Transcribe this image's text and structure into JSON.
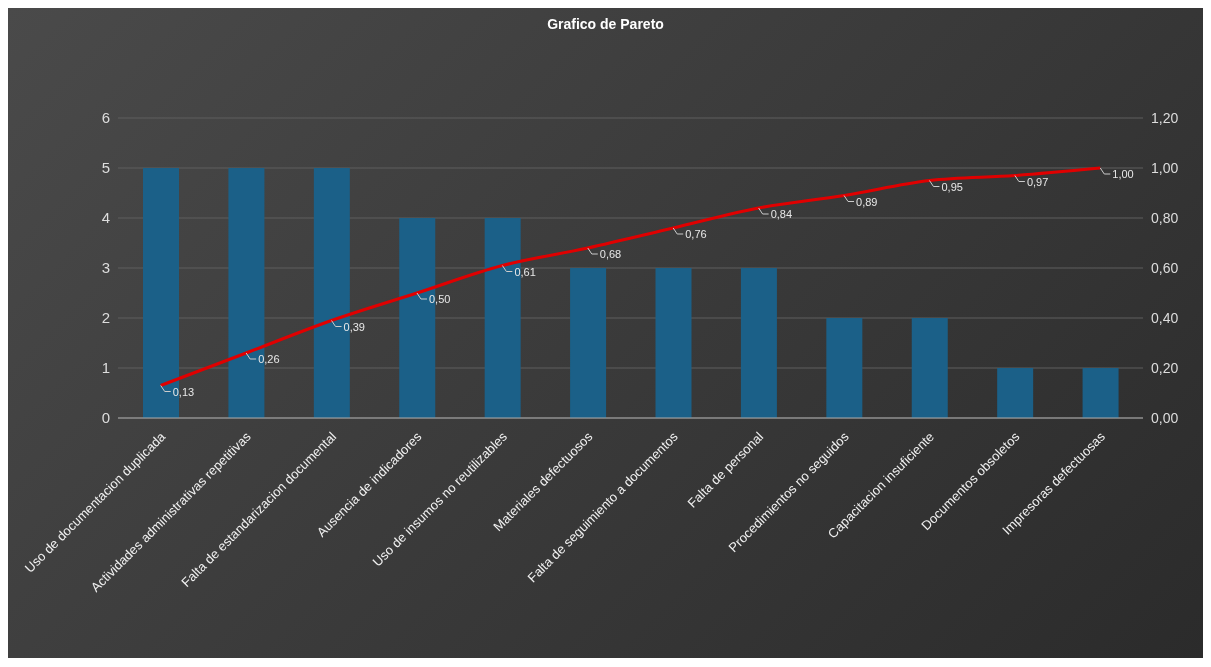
{
  "chart_data": {
    "type": "bar",
    "title": "Grafico de Pareto",
    "categories": [
      "Uso de documentacion duplicada",
      "Actividades administrativas repetitivas",
      "Falta de estandarizacion documental",
      "Ausencia de indicadores",
      "Uso de insumos no reutilizables",
      "Materiales defectuosos",
      "Falta de seguimiento a documentos",
      "Falta de personal",
      "Procedimientos no seguidos",
      "Capacitacion insuficiente",
      "Documentos obsoletos",
      "Impresoras defectuosas"
    ],
    "series": [
      {
        "color": "#1b6088",
        "values": [
          5,
          5,
          5,
          4,
          4,
          3,
          3,
          3,
          2,
          2,
          1,
          1
        ]
      },
      {
        "type": "line",
        "axis": "y2",
        "color": "#e00000",
        "values": [
          0.13,
          0.26,
          0.39,
          0.5,
          0.61,
          0.68,
          0.76,
          0.84,
          0.89,
          0.95,
          0.97,
          1.0
        ],
        "value_labels": [
          "0,13",
          "0,26",
          "0,39",
          "0,50",
          "0,61",
          "0,68",
          "0,76",
          "0,84",
          "0,89",
          "0,95",
          "0,97",
          "1,00"
        ]
      }
    ],
    "ylim": [
      0,
      6
    ],
    "yticks": [
      0,
      1,
      2,
      3,
      4,
      5,
      6
    ],
    "y2lim": [
      0,
      1.2
    ],
    "y2ticks": [
      {
        "value": 0,
        "label": "0,00"
      },
      {
        "value": 0.2,
        "label": "0,20"
      },
      {
        "value": 0.4,
        "label": "0,40"
      },
      {
        "value": 0.6,
        "label": "0,60"
      },
      {
        "value": 0.8,
        "label": "0,80"
      },
      {
        "value": 1.0,
        "label": "1,00"
      },
      {
        "value": 1.2,
        "label": "1,20"
      }
    ],
    "grid": "y",
    "legend": false,
    "marker": "none",
    "line_style": "solid"
  }
}
